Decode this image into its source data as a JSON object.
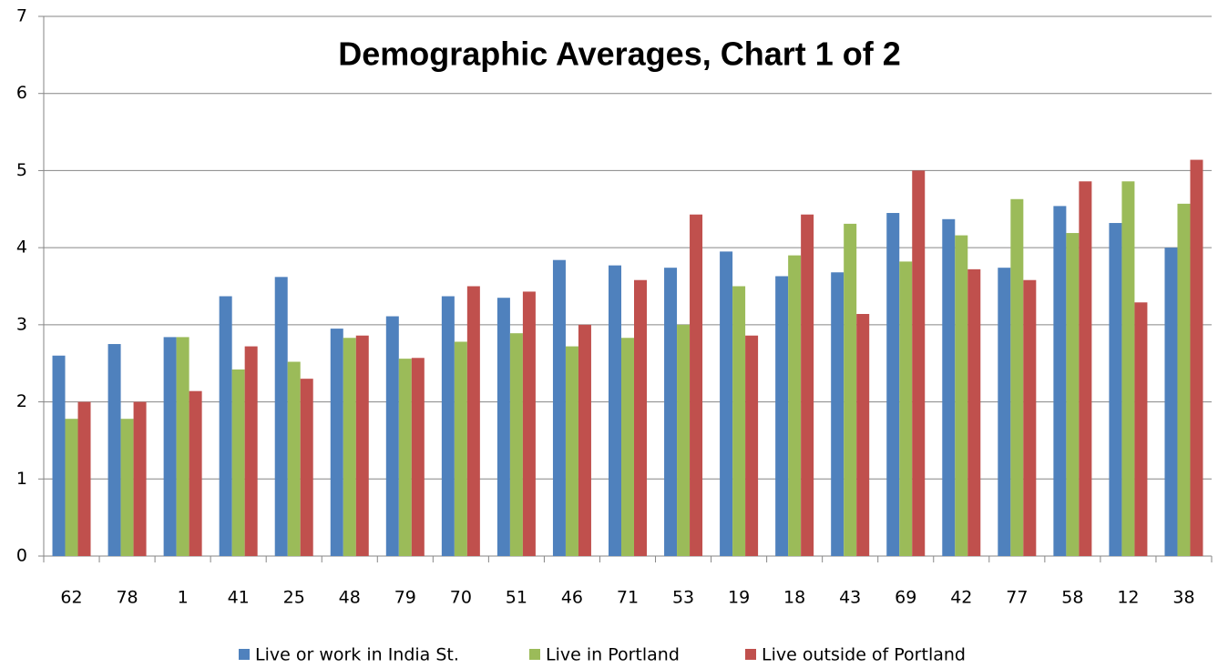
{
  "chart_data": {
    "type": "bar",
    "title": "Demographic Averages, Chart 1 of 2",
    "categories": [
      "62",
      "78",
      "1",
      "41",
      "25",
      "48",
      "79",
      "70",
      "51",
      "46",
      "71",
      "53",
      "19",
      "18",
      "43",
      "69",
      "42",
      "77",
      "58",
      "12",
      "38"
    ],
    "series": [
      {
        "name": "Live or work in India St.",
        "color": "#4f81bd",
        "values": [
          2.6,
          2.75,
          2.84,
          3.37,
          3.62,
          2.95,
          3.11,
          3.37,
          3.35,
          3.84,
          3.77,
          3.74,
          3.95,
          3.63,
          3.68,
          4.45,
          4.37,
          3.74,
          4.54,
          4.32,
          4.0
        ]
      },
      {
        "name": "Live in Portland",
        "color": "#9bbb59",
        "values": [
          1.78,
          1.78,
          2.84,
          2.42,
          2.52,
          2.83,
          2.56,
          2.78,
          2.89,
          2.72,
          2.83,
          3.0,
          3.5,
          3.9,
          4.31,
          3.82,
          4.16,
          4.63,
          4.19,
          4.86,
          4.57
        ]
      },
      {
        "name": "Live outside of Portland",
        "color": "#c0504d",
        "values": [
          2.0,
          2.0,
          2.14,
          2.72,
          2.3,
          2.86,
          2.57,
          3.5,
          3.43,
          3.0,
          3.58,
          4.43,
          2.86,
          4.43,
          3.14,
          5.0,
          3.72,
          3.58,
          4.86,
          3.29,
          5.14
        ]
      }
    ],
    "ylim": [
      0,
      7
    ],
    "yticks": [
      0,
      1,
      2,
      3,
      4,
      5,
      6,
      7
    ],
    "grid": true,
    "legend": "bottom"
  }
}
